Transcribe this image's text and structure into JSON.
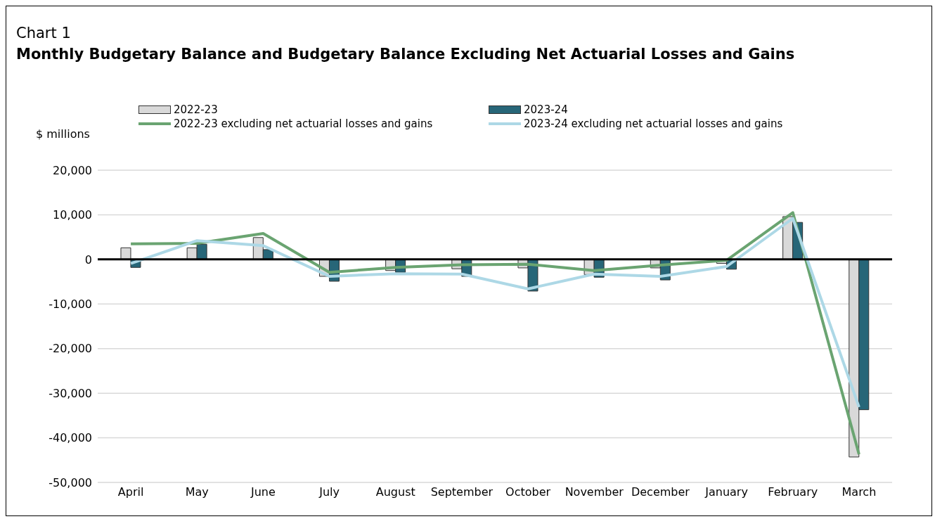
{
  "chart_data": {
    "type": "bar",
    "title": "Chart 1",
    "subtitle": "Monthly Budgetary Balance and Budgetary Balance Excluding Net Actuarial Losses and Gains",
    "ylabel": "$ millions",
    "categories": [
      "April",
      "May",
      "June",
      "July",
      "August",
      "September",
      "October",
      "November",
      "December",
      "January",
      "February",
      "March"
    ],
    "series": [
      {
        "name": "2022-23",
        "color": "#d9d9d9",
        "values": [
          2600,
          2600,
          4900,
          -3800,
          -2500,
          -2100,
          -1900,
          -3400,
          -1900,
          -900,
          9600,
          -44300
        ]
      },
      {
        "name": "2023-24",
        "color": "#276678",
        "values": [
          -1800,
          3400,
          2200,
          -4900,
          -2900,
          -3800,
          -7100,
          -4000,
          -4600,
          -2200,
          8300,
          -33700
        ]
      },
      {
        "name": "2022-23 excluding net actuarial losses and gains",
        "type": "line",
        "color": "#6aa471",
        "values": [
          3500,
          3600,
          5800,
          -2900,
          -1800,
          -1200,
          -1100,
          -2500,
          -1300,
          -200,
          10500,
          -43700
        ]
      },
      {
        "name": "2023-24 excluding net actuarial losses and gains",
        "type": "line",
        "color": "#add8e6",
        "values": [
          -900,
          4200,
          3100,
          -3800,
          -3200,
          -3300,
          -6600,
          -3300,
          -3800,
          -1600,
          9200,
          -33100
        ]
      }
    ],
    "ylim": [
      -50000,
      20000
    ],
    "yticks": [
      {
        "value": -50000,
        "label": "-50,000"
      },
      {
        "value": -40000,
        "label": "-40,000"
      },
      {
        "value": -30000,
        "label": "-30,000"
      },
      {
        "value": -20000,
        "label": "-20,000"
      },
      {
        "value": -10000,
        "label": "-10,000"
      },
      0,
      {
        "value": 10000,
        "label": "10,000"
      },
      {
        "value": 20000,
        "label": "20,000"
      }
    ],
    "ref_lines": [
      {
        "axis": "y",
        "value": 0,
        "color": "#000000"
      }
    ],
    "grid": "y",
    "legend": "top",
    "marker": "none",
    "line_style": "solid"
  }
}
